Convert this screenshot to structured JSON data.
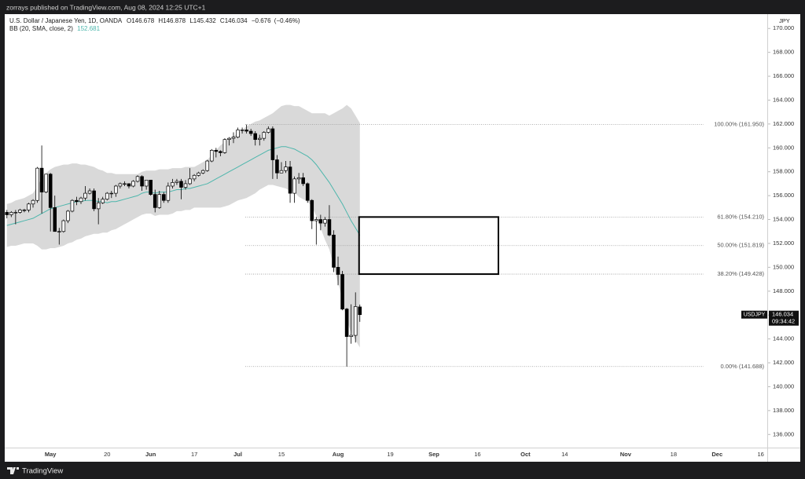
{
  "header": {
    "publisher_line": "zorrays published on TradingView.com, Aug 08, 2024 12:25 UTC+1"
  },
  "footer": {
    "brand": "TradingView"
  },
  "chart_data": {
    "type": "candlestick",
    "title": "U.S. Dollar / Japanese Yen, 1D, OANDA",
    "ohlc_prefixes": [
      "O",
      "H",
      "L",
      "C"
    ],
    "change": {
      "value": -0.676,
      "label": "−0.676"
    },
    "change_pct": {
      "value": -0.46,
      "label": "(−0.46%)"
    },
    "indicator_name": "BB (20, SMA, close, 2)",
    "basis_color": "#4db6ac",
    "band_color": "#d9d9d9",
    "up_color": "#ffffff",
    "down_color": "#000000",
    "wick_color": "#000000",
    "currency": "JPY",
    "symbol": "USDJPY",
    "countdown": "09:34:42",
    "categories": [
      null,
      null,
      null,
      null,
      null,
      null,
      null,
      null,
      null,
      null,
      "May",
      null,
      null,
      null,
      null,
      null,
      null,
      null,
      null,
      null,
      null,
      null,
      null,
      "20",
      null,
      null,
      null,
      null,
      null,
      null,
      null,
      null,
      null,
      "Jun",
      null,
      null,
      null,
      null,
      null,
      null,
      null,
      null,
      null,
      "17",
      null,
      null,
      null,
      null,
      null,
      null,
      null,
      null,
      null,
      "Jul",
      null,
      null,
      null,
      null,
      null,
      null,
      null,
      null,
      null,
      "15",
      null,
      null,
      null,
      null,
      null,
      null,
      null,
      null,
      null,
      null,
      null,
      null,
      "Aug",
      null,
      null,
      null,
      null,
      null,
      null,
      null,
      null,
      null,
      null,
      null,
      "19",
      null,
      null,
      null,
      null,
      null,
      null,
      null,
      null,
      null,
      "Sep",
      null,
      null,
      null,
      null,
      null,
      null,
      null,
      null,
      null,
      "16",
      null,
      null,
      null,
      null,
      null,
      null,
      null,
      null,
      null,
      null,
      "Oct",
      null,
      null,
      null,
      null,
      null,
      null,
      null,
      null,
      "14",
      null,
      null,
      null,
      null,
      null,
      null,
      null,
      null,
      null,
      null,
      null,
      null,
      null,
      "Nov",
      null,
      null,
      null,
      null,
      null,
      null,
      null,
      null,
      null,
      null,
      "18",
      null,
      null,
      null,
      null,
      null,
      null,
      null,
      null,
      null,
      "Dec",
      null,
      null,
      null,
      null,
      null,
      null,
      null,
      null,
      null,
      "16",
      null
    ],
    "open": [
      154.6,
      154.4,
      154.6,
      154.6,
      154.8,
      154.8,
      155.3,
      155.6,
      158.3,
      156.3,
      157.8,
      155.0,
      153.0,
      153.0,
      153.9,
      154.7,
      155.6,
      155.5,
      155.8,
      156.2,
      156.4,
      154.9,
      155.4,
      155.7,
      156.2,
      156.2,
      156.8,
      157.0,
      157.0,
      156.8,
      157.2,
      157.6,
      156.8,
      157.3,
      156.1,
      155.0,
      156.1,
      155.6,
      156.8,
      157.1,
      157.2,
      156.7,
      157.0,
      157.4,
      157.7,
      157.9,
      158.1,
      158.9,
      159.8,
      159.7,
      159.6,
      160.7,
      160.8,
      160.9,
      161.5,
      161.5,
      161.4,
      161.2,
      160.7,
      160.8,
      161.3,
      161.6,
      159.0,
      157.9,
      158.1,
      158.4,
      156.2,
      157.4,
      157.5,
      157.0,
      155.6,
      153.9,
      154.0,
      153.7,
      154.0,
      152.7,
      150.0,
      149.4,
      146.5,
      144.2,
      144.3,
      146.678,
      null,
      null,
      null,
      null,
      null,
      null,
      null,
      null,
      null,
      null,
      null,
      null,
      null,
      null,
      null,
      null,
      null,
      null,
      null,
      null,
      null,
      null,
      null,
      null,
      null,
      null,
      null,
      null,
      null,
      null,
      null,
      null,
      null,
      null,
      null,
      null,
      null,
      null,
      null,
      null,
      null,
      null,
      null,
      null,
      null,
      null,
      null,
      null,
      null,
      null,
      null,
      null,
      null,
      null,
      null,
      null,
      null,
      null,
      null,
      null,
      null,
      null,
      null,
      null,
      null,
      null,
      null,
      null,
      null,
      null,
      null,
      null,
      null,
      null,
      null,
      null,
      null,
      null,
      null,
      null,
      null,
      null,
      null,
      null,
      null,
      null,
      null,
      null,
      null,
      null,
      null,
      null,
      null
    ],
    "high": [
      154.8,
      154.7,
      154.8,
      154.9,
      154.9,
      155.4,
      155.7,
      158.4,
      160.2,
      157.8,
      157.9,
      156.0,
      153.3,
      154.0,
      154.8,
      155.7,
      155.9,
      155.9,
      156.8,
      156.6,
      156.6,
      155.8,
      155.9,
      156.3,
      156.4,
      156.9,
      157.1,
      157.2,
      157.0,
      157.3,
      157.7,
      157.7,
      157.3,
      157.3,
      156.5,
      156.4,
      156.3,
      157.1,
      157.4,
      157.4,
      157.4,
      157.3,
      158.3,
      157.8,
      158.0,
      158.2,
      159.0,
      159.9,
      160.0,
      159.8,
      160.8,
      160.9,
      161.3,
      161.7,
      161.7,
      161.95,
      161.6,
      161.4,
      161.1,
      161.4,
      161.8,
      161.8,
      159.4,
      158.8,
      158.9,
      158.9,
      157.6,
      157.9,
      157.9,
      157.1,
      155.7,
      154.2,
      154.4,
      154.2,
      155.2,
      153.1,
      150.9,
      149.7,
      146.6,
      146.9,
      147.9,
      146.878,
      null,
      null,
      null,
      null,
      null,
      null,
      null,
      null,
      null,
      null,
      null,
      null,
      null,
      null,
      null,
      null,
      null,
      null,
      null,
      null,
      null,
      null,
      null,
      null,
      null,
      null,
      null,
      null,
      null,
      null,
      null,
      null,
      null,
      null,
      null,
      null,
      null,
      null,
      null,
      null,
      null,
      null,
      null,
      null,
      null,
      null,
      null,
      null,
      null,
      null,
      null,
      null,
      null,
      null,
      null,
      null,
      null,
      null,
      null,
      null,
      null,
      null,
      null,
      null,
      null,
      null,
      null,
      null,
      null,
      null,
      null,
      null,
      null,
      null,
      null,
      null,
      null,
      null,
      null,
      null,
      null,
      null,
      null,
      null,
      null,
      null,
      null,
      null,
      null,
      null,
      null,
      null,
      null
    ],
    "low": [
      154.1,
      154.2,
      153.6,
      154.5,
      154.6,
      154.6,
      155.0,
      155.4,
      154.5,
      156.2,
      153.0,
      153.0,
      151.9,
      152.9,
      153.7,
      154.6,
      155.2,
      155.3,
      155.6,
      156.1,
      154.7,
      153.6,
      155.3,
      155.6,
      155.8,
      155.9,
      156.6,
      156.8,
      156.6,
      156.7,
      157.1,
      156.4,
      156.5,
      156.0,
      154.6,
      154.9,
      155.4,
      155.4,
      156.6,
      156.9,
      155.7,
      156.5,
      156.9,
      157.2,
      157.6,
      157.8,
      158.0,
      158.8,
      159.2,
      159.3,
      159.5,
      160.2,
      160.4,
      160.8,
      161.2,
      161.2,
      161.0,
      160.2,
      160.2,
      160.6,
      161.2,
      157.4,
      157.4,
      157.9,
      157.9,
      155.4,
      155.4,
      157.0,
      156.8,
      155.4,
      153.2,
      151.9,
      153.1,
      153.4,
      152.6,
      149.6,
      148.5,
      146.4,
      141.688,
      143.6,
      143.7,
      145.432,
      null,
      null,
      null,
      null,
      null,
      null,
      null,
      null,
      null,
      null,
      null,
      null,
      null,
      null,
      null,
      null,
      null,
      null,
      null,
      null,
      null,
      null,
      null,
      null,
      null,
      null,
      null,
      null,
      null,
      null,
      null,
      null,
      null,
      null,
      null,
      null,
      null,
      null,
      null,
      null,
      null,
      null,
      null,
      null,
      null,
      null,
      null,
      null,
      null,
      null,
      null,
      null,
      null,
      null,
      null,
      null,
      null,
      null,
      null,
      null,
      null,
      null,
      null,
      null,
      null,
      null,
      null,
      null,
      null,
      null,
      null,
      null,
      null,
      null,
      null,
      null,
      null,
      null,
      null,
      null,
      null,
      null,
      null,
      null,
      null,
      null,
      null,
      null,
      null,
      null,
      null,
      null,
      null
    ],
    "close": [
      154.4,
      154.6,
      154.6,
      154.8,
      154.8,
      155.3,
      155.6,
      158.3,
      156.3,
      157.8,
      155.0,
      153.0,
      153.0,
      153.9,
      154.7,
      155.6,
      155.5,
      155.8,
      156.2,
      156.4,
      154.9,
      155.4,
      155.7,
      156.2,
      156.2,
      156.8,
      157.0,
      157.0,
      156.8,
      157.2,
      157.6,
      156.8,
      157.3,
      156.1,
      155.0,
      156.1,
      155.6,
      156.8,
      157.1,
      157.2,
      156.7,
      157.0,
      157.4,
      157.7,
      157.9,
      158.1,
      158.9,
      159.8,
      159.7,
      159.6,
      160.7,
      160.8,
      160.9,
      161.5,
      161.5,
      161.4,
      161.2,
      160.7,
      160.8,
      161.3,
      161.6,
      159.0,
      157.9,
      158.1,
      158.4,
      156.2,
      157.4,
      157.5,
      157.0,
      155.6,
      153.9,
      154.0,
      153.7,
      154.0,
      152.7,
      150.0,
      149.4,
      146.5,
      144.2,
      144.3,
      146.71,
      146.034,
      null,
      null,
      null,
      null,
      null,
      null,
      null,
      null,
      null,
      null,
      null,
      null,
      null,
      null,
      null,
      null,
      null,
      null,
      null,
      null,
      null,
      null,
      null,
      null,
      null,
      null,
      null,
      null,
      null,
      null,
      null,
      null,
      null,
      null,
      null,
      null,
      null,
      null,
      null,
      null,
      null,
      null,
      null,
      null,
      null,
      null,
      null,
      null,
      null,
      null,
      null,
      null,
      null,
      null,
      null,
      null,
      null,
      null,
      null,
      null,
      null,
      null,
      null,
      null,
      null,
      null,
      null,
      null,
      null,
      null,
      null,
      null,
      null,
      null,
      null,
      null,
      null,
      null,
      null,
      null,
      null,
      null,
      null,
      null,
      null,
      null,
      null,
      null,
      null,
      null,
      null,
      null,
      null
    ],
    "bb_basis": [
      153.5,
      153.6,
      153.7,
      153.8,
      153.9,
      154.0,
      154.1,
      154.3,
      154.5,
      154.7,
      154.9,
      155.0,
      155.1,
      155.2,
      155.3,
      155.4,
      155.5,
      155.5,
      155.6,
      155.6,
      155.6,
      155.5,
      155.5,
      155.4,
      155.5,
      155.5,
      155.6,
      155.7,
      155.8,
      155.9,
      156.0,
      156.2,
      156.3,
      156.3,
      156.2,
      156.3,
      156.3,
      156.3,
      156.4,
      156.5,
      156.5,
      156.6,
      156.6,
      156.7,
      156.8,
      156.9,
      157.0,
      157.2,
      157.4,
      157.6,
      157.8,
      158.0,
      158.2,
      158.4,
      158.6,
      158.8,
      159.0,
      159.2,
      159.4,
      159.6,
      159.8,
      159.9,
      160.0,
      160.1,
      160.1,
      160.0,
      159.9,
      159.7,
      159.5,
      159.3,
      159.0,
      158.6,
      158.1,
      157.6,
      157.1,
      156.5,
      155.9,
      155.3,
      154.6,
      153.9,
      153.3,
      152.681,
      null,
      null,
      null,
      null,
      null,
      null,
      null,
      null,
      null,
      null,
      null,
      null,
      null,
      null,
      null,
      null,
      null,
      null,
      null,
      null,
      null,
      null,
      null,
      null,
      null,
      null,
      null,
      null,
      null,
      null,
      null,
      null,
      null,
      null,
      null,
      null,
      null,
      null,
      null,
      null,
      null,
      null,
      null,
      null,
      null,
      null,
      null,
      null,
      null,
      null,
      null,
      null,
      null,
      null,
      null,
      null,
      null,
      null,
      null,
      null,
      null,
      null,
      null,
      null,
      null,
      null,
      null,
      null,
      null,
      null,
      null,
      null,
      null,
      null,
      null,
      null,
      null,
      null,
      null,
      null,
      null,
      null,
      null,
      null,
      null,
      null,
      null,
      null,
      null,
      null,
      null,
      null,
      null
    ],
    "bb_upper": [
      155.3,
      155.4,
      155.6,
      155.7,
      155.8,
      156.0,
      156.2,
      156.8,
      157.5,
      157.9,
      158.2,
      158.4,
      158.5,
      158.6,
      158.6,
      158.7,
      158.7,
      158.6,
      158.6,
      158.5,
      158.4,
      158.2,
      158.1,
      157.9,
      157.9,
      157.8,
      157.8,
      157.8,
      157.8,
      157.8,
      157.8,
      158.0,
      158.1,
      158.1,
      158.1,
      158.2,
      158.2,
      158.2,
      158.3,
      158.3,
      158.3,
      158.4,
      158.4,
      158.4,
      158.6,
      158.8,
      159.0,
      159.4,
      159.8,
      160.2,
      160.5,
      160.8,
      161.0,
      161.2,
      161.5,
      161.8,
      162.0,
      162.2,
      162.3,
      162.5,
      162.7,
      162.9,
      163.2,
      163.5,
      163.6,
      163.6,
      163.5,
      163.5,
      163.3,
      163.1,
      162.9,
      162.9,
      162.9,
      162.9,
      162.7,
      162.9,
      163.1,
      163.3,
      163.6,
      163.3,
      162.7,
      162.081,
      null,
      null,
      null,
      null,
      null,
      null,
      null,
      null,
      null,
      null,
      null,
      null,
      null,
      null,
      null,
      null,
      null,
      null,
      null,
      null,
      null,
      null,
      null,
      null,
      null,
      null,
      null,
      null,
      null,
      null,
      null,
      null,
      null,
      null,
      null,
      null,
      null,
      null,
      null,
      null,
      null,
      null,
      null,
      null,
      null,
      null,
      null,
      null,
      null,
      null,
      null,
      null,
      null,
      null,
      null,
      null,
      null,
      null,
      null,
      null,
      null,
      null,
      null,
      null,
      null,
      null,
      null,
      null,
      null,
      null,
      null,
      null,
      null,
      null,
      null,
      null,
      null,
      null,
      null,
      null,
      null,
      null,
      null,
      null,
      null,
      null,
      null,
      null,
      null,
      null,
      null,
      null,
      null
    ],
    "bb_lower": [
      151.7,
      151.8,
      151.8,
      151.9,
      152.0,
      152.0,
      152.0,
      151.8,
      151.5,
      151.5,
      151.6,
      151.6,
      151.7,
      151.8,
      152.0,
      152.1,
      152.3,
      152.4,
      152.6,
      152.7,
      152.8,
      152.8,
      152.9,
      152.9,
      153.1,
      153.2,
      153.4,
      153.6,
      153.8,
      154.0,
      154.2,
      154.4,
      154.5,
      154.5,
      154.3,
      154.4,
      154.4,
      154.4,
      154.5,
      154.7,
      154.7,
      154.8,
      154.8,
      155.0,
      155.0,
      155.0,
      155.0,
      155.0,
      155.0,
      155.0,
      155.1,
      155.2,
      155.4,
      155.6,
      155.7,
      155.8,
      156.0,
      156.2,
      156.5,
      156.7,
      156.9,
      156.9,
      156.8,
      156.7,
      156.6,
      156.4,
      156.3,
      155.9,
      155.7,
      155.5,
      155.1,
      154.3,
      153.3,
      152.3,
      151.5,
      150.1,
      148.7,
      147.3,
      145.6,
      144.5,
      143.9,
      143.281,
      null,
      null,
      null,
      null,
      null,
      null,
      null,
      null,
      null,
      null,
      null,
      null,
      null,
      null,
      null,
      null,
      null,
      null,
      null,
      null,
      null,
      null,
      null,
      null,
      null,
      null,
      null,
      null,
      null,
      null,
      null,
      null,
      null,
      null,
      null,
      null,
      null,
      null,
      null,
      null,
      null,
      null,
      null,
      null,
      null,
      null,
      null,
      null,
      null,
      null,
      null,
      null,
      null,
      null,
      null,
      null,
      null,
      null,
      null,
      null,
      null,
      null,
      null,
      null,
      null,
      null,
      null,
      null,
      null,
      null,
      null,
      null,
      null,
      null,
      null,
      null,
      null,
      null,
      null,
      null,
      null,
      null,
      null,
      null,
      null,
      null,
      null,
      null,
      null,
      null,
      null,
      null,
      null
    ],
    "ylim": [
      134.9,
      171.2
    ],
    "yticks": [
      {
        "value": 136,
        "label": "136.000"
      },
      {
        "value": 138,
        "label": "138.000"
      },
      {
        "value": 140,
        "label": "140.000"
      },
      {
        "value": 142,
        "label": "142.000"
      },
      {
        "value": 144,
        "label": "144.000"
      },
      {
        "value": 146,
        "label": "146.000"
      },
      {
        "value": 148,
        "label": "148.000"
      },
      {
        "value": 150,
        "label": "150.000"
      },
      {
        "value": 152,
        "label": "152.000"
      },
      {
        "value": 154,
        "label": "154.000"
      },
      {
        "value": 156,
        "label": "156.000"
      },
      {
        "value": 158,
        "label": "158.000"
      },
      {
        "value": 160,
        "label": "160.000"
      },
      {
        "value": 162,
        "label": "162.000"
      },
      {
        "value": 164,
        "label": "164.000"
      },
      {
        "value": 166,
        "label": "166.000"
      },
      {
        "value": 168,
        "label": "168.000"
      },
      {
        "value": 170,
        "label": "170.000"
      }
    ],
    "fib_levels": [
      {
        "value": 161.95,
        "label": "100.00% (161.950)"
      },
      {
        "value": 154.21,
        "label": "61.80% (154.210)"
      },
      {
        "value": 151.819,
        "label": "50.00% (151.819)"
      },
      {
        "value": 149.428,
        "label": "38.20% (149.428)"
      },
      {
        "value": 141.688,
        "label": "0.00% (141.688)"
      }
    ]
  }
}
